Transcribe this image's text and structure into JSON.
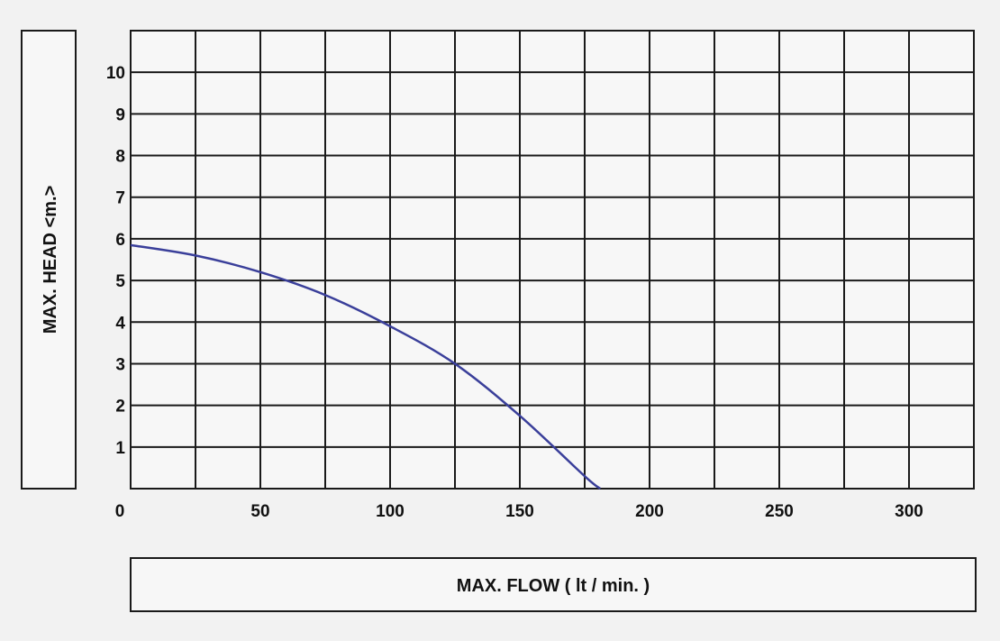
{
  "chart_data": {
    "type": "line",
    "xlabel": "MAX.  FLOW  ( lt / min. )",
    "ylabel": "MAX.  HEAD  <m.>",
    "xlim": [
      0,
      325
    ],
    "ylim": [
      0,
      11
    ],
    "x_ticks": [
      0,
      50,
      100,
      150,
      200,
      250,
      300
    ],
    "x_tick_labels": [
      "0",
      "50",
      "100",
      "150",
      "200",
      "250",
      "300"
    ],
    "y_ticks": [
      1,
      2,
      3,
      4,
      5,
      6,
      7,
      8,
      9,
      10
    ],
    "y_tick_labels": [
      "1",
      "2",
      "3",
      "4",
      "5",
      "6",
      "7",
      "8",
      "9",
      "10"
    ],
    "x_grid_every": 25,
    "y_grid_every": 1,
    "grid": true,
    "series": [
      {
        "color": "#3a3f9a",
        "x": [
          0,
          25,
          50,
          75,
          100,
          125,
          150,
          175,
          181
        ],
        "y": [
          5.85,
          5.6,
          5.2,
          4.65,
          3.9,
          3.0,
          1.75,
          0.3,
          0
        ]
      }
    ]
  }
}
